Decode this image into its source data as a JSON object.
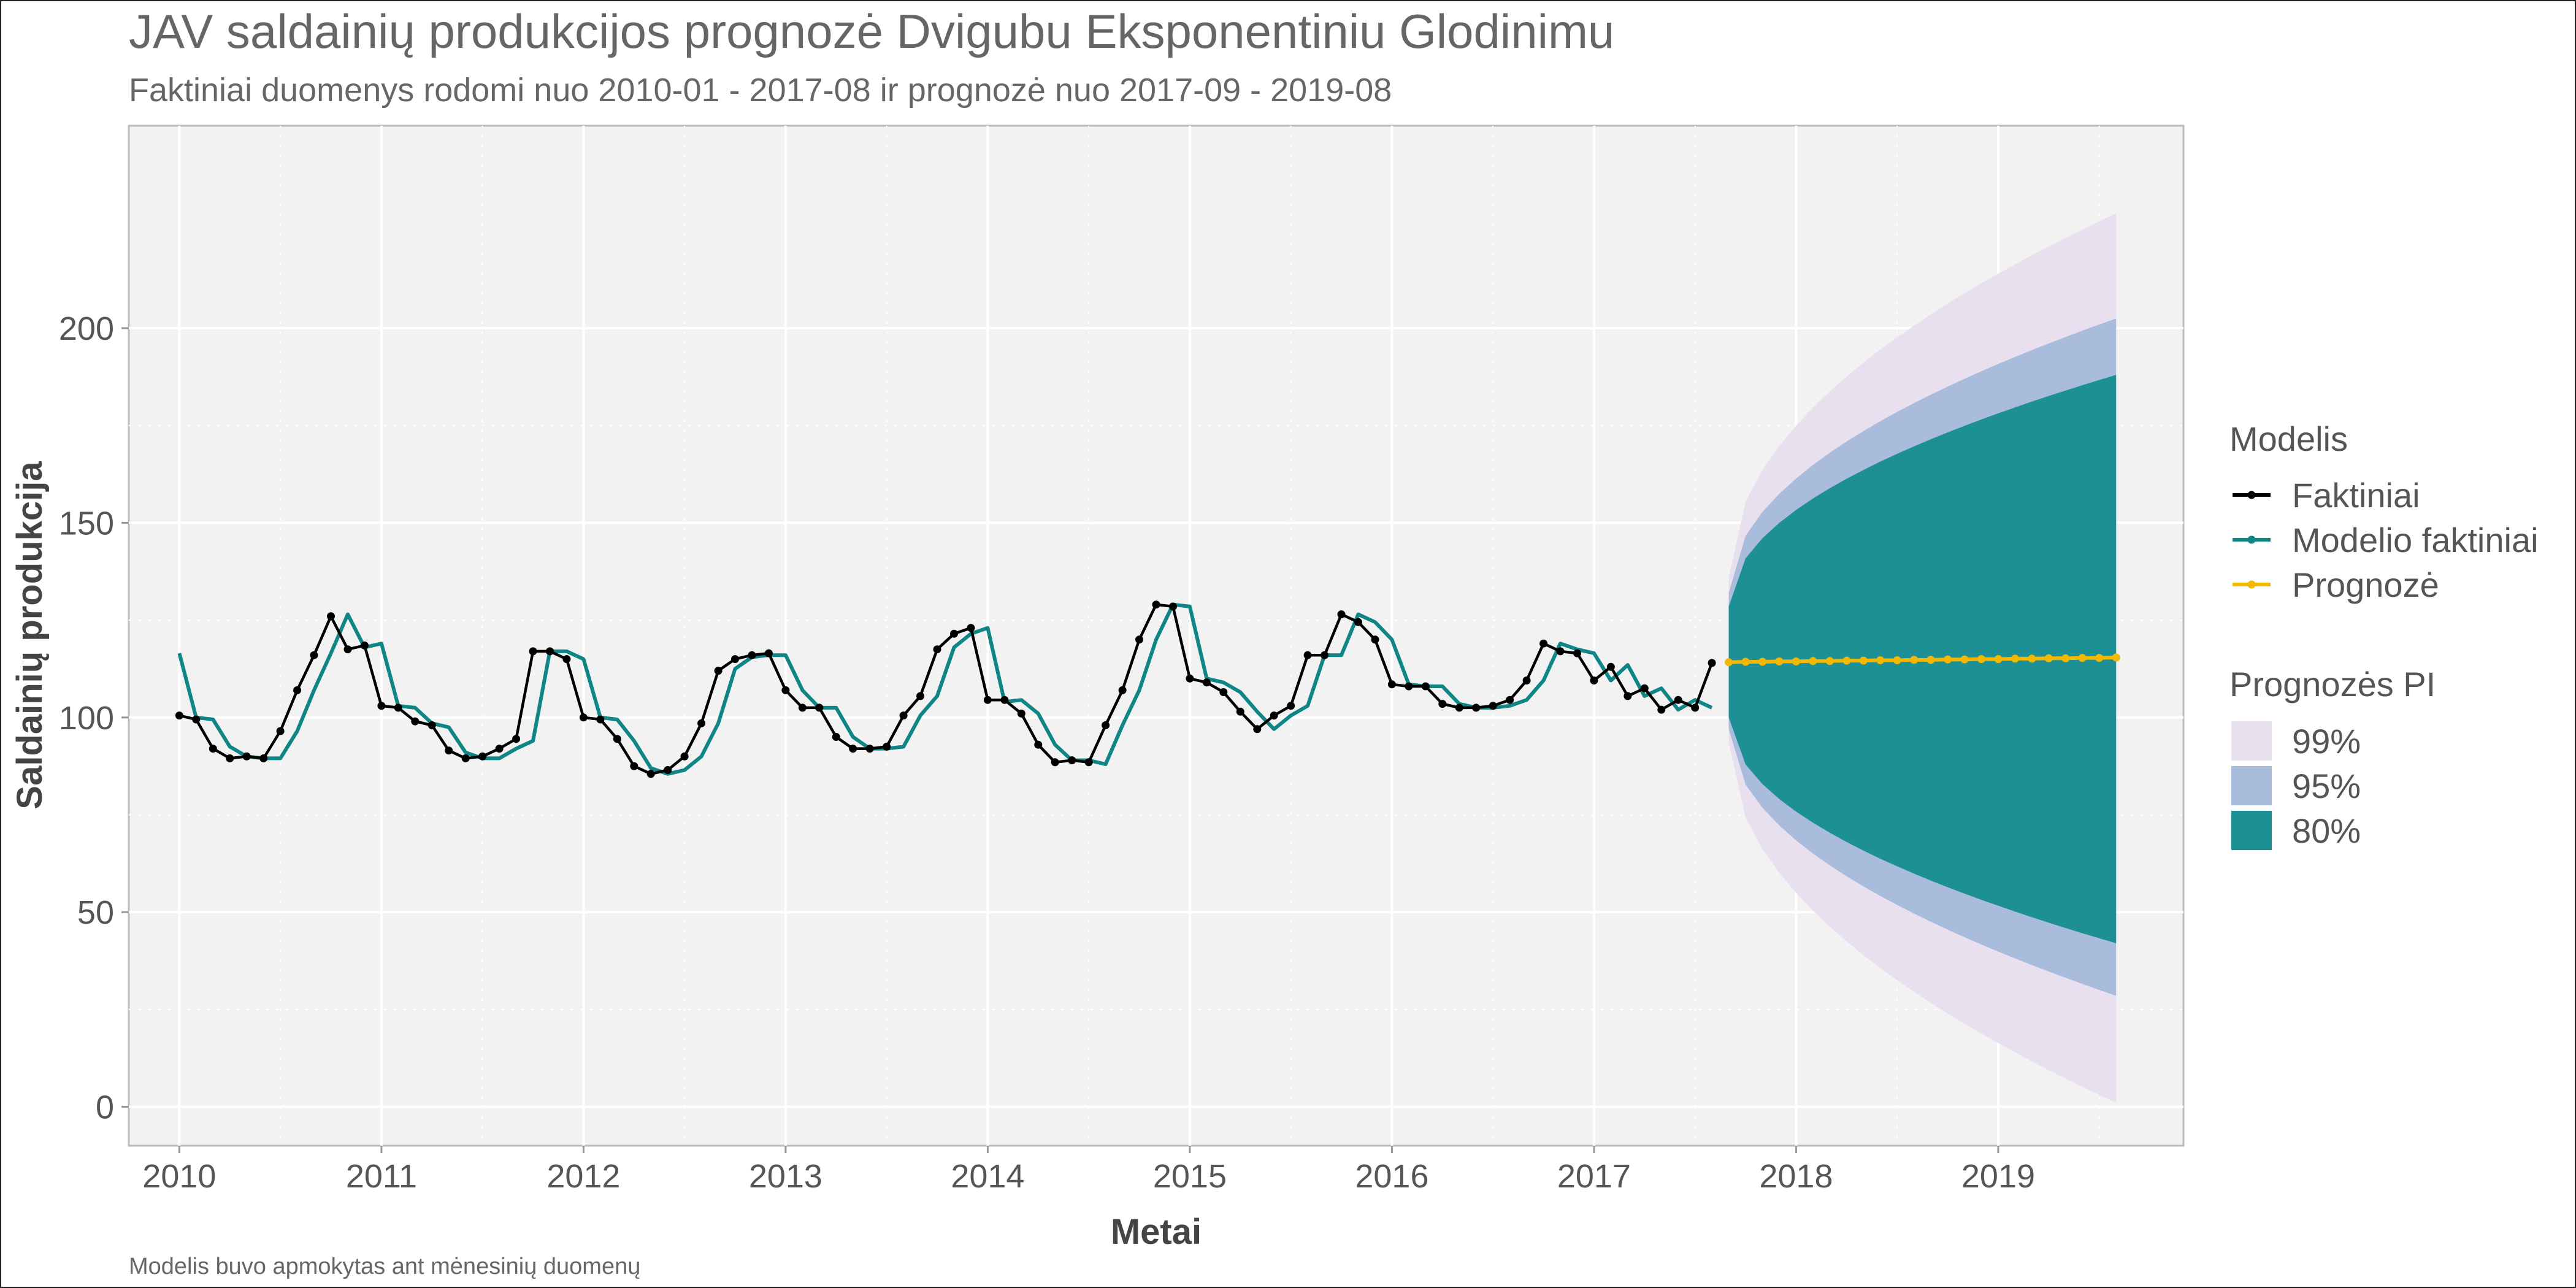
{
  "title": "JAV saldainių produkcijos prognozė Dvigubu Eksponentiniu Glodinimu",
  "subtitle": "Faktiniai duomenys rodomi nuo 2010-01 - 2017-08 ir prognozė nuo 2017-09 - 2019-08",
  "caption": "Modelis buvo apmokytas ant mėnesinių duomenų",
  "chart_data": {
    "type": "line",
    "xlabel": "Metai",
    "ylabel": "Saldainių produkcija",
    "xlim": [
      "2009-10",
      "2019-12"
    ],
    "ylim": [
      -10,
      252
    ],
    "x_ticks": [
      "2010",
      "2011",
      "2012",
      "2013",
      "2014",
      "2015",
      "2016",
      "2017",
      "2018",
      "2019"
    ],
    "y_ticks": [
      0,
      50,
      100,
      150,
      200
    ],
    "grid": true,
    "legend_position": "right",
    "colors": {
      "panel": "#f2f2f2",
      "grid_major": "#ffffff",
      "actual": "#000000",
      "fitted": "#0f8585",
      "forecast": "#f5b800",
      "pi99": "#e9e0ef",
      "pi95": "#a9bcdc",
      "pi80": "#1d9096"
    },
    "actual": {
      "start": "2010-01",
      "values": [
        100.5,
        99.5,
        92,
        89.5,
        90,
        89.5,
        96.5,
        107,
        116,
        126,
        117.5,
        118.5,
        103,
        102.5,
        99,
        98,
        91.5,
        89.5,
        90,
        92,
        94.5,
        117,
        117,
        115,
        100,
        99.5,
        94.5,
        87.5,
        85.5,
        86.5,
        90,
        98.5,
        112,
        115,
        116,
        116.5,
        107,
        102.5,
        102.5,
        95,
        92,
        92,
        92.5,
        100.5,
        105.5,
        117.5,
        121.5,
        123,
        104.5,
        104.5,
        101,
        93,
        88.5,
        89,
        88.5,
        98,
        107,
        120,
        129,
        128.5,
        110,
        109,
        106.5,
        101.5,
        97,
        100.5,
        103,
        116,
        116,
        126.5,
        124.5,
        120,
        108.5,
        108,
        108,
        103.5,
        102.5,
        102.5,
        103,
        104.5,
        109.5,
        119,
        117,
        116.5,
        109.5,
        113,
        105.5,
        107.5,
        102,
        104.5,
        102.5,
        114
      ]
    },
    "fitted": {
      "start": "2010-01",
      "values": [
        116.5,
        100,
        99.5,
        92.5,
        90,
        89.5,
        89.5,
        96.5,
        107,
        116.5,
        126.5,
        118,
        119,
        103,
        102.5,
        98.5,
        97.5,
        91,
        89.5,
        89.5,
        92,
        94,
        117,
        117,
        115,
        100,
        99.5,
        94,
        87,
        85.5,
        86.5,
        90,
        98.5,
        112.5,
        115.5,
        116,
        116,
        107,
        102.5,
        102.5,
        95,
        92,
        92,
        92.5,
        100.5,
        105.5,
        118,
        121.5,
        123,
        104,
        104.5,
        101,
        93,
        89,
        89,
        88,
        98,
        107,
        120,
        129,
        128.5,
        110,
        109,
        106.5,
        101.5,
        97,
        100.5,
        103,
        116,
        116,
        126.5,
        124.5,
        120,
        108.5,
        108,
        108,
        103.5,
        102.5,
        102.5,
        103,
        104.5,
        109.5,
        119,
        117.5,
        116.5,
        109.5,
        113.5,
        105.5,
        107.5,
        102,
        104.5,
        102.5
      ]
    },
    "forecast": {
      "start": "2017-09",
      "values": [
        114.2,
        114.3,
        114.3,
        114.4,
        114.4,
        114.5,
        114.5,
        114.6,
        114.6,
        114.7,
        114.7,
        114.8,
        114.8,
        114.9,
        114.9,
        115.0,
        115.0,
        115.1,
        115.1,
        115.2,
        115.2,
        115.3,
        115.3,
        115.4
      ],
      "pi80": {
        "lower_first": 100,
        "upper_first": 128.5,
        "lower_last": 42,
        "upper_last": 188
      },
      "pi95": {
        "lower_first": 97,
        "upper_first": 132,
        "lower_last": 28.5,
        "upper_last": 202.5
      },
      "pi99": {
        "lower_first": 93.5,
        "upper_first": 136,
        "lower_last": 1,
        "upper_last": 229.5
      }
    },
    "legend": {
      "model_title": "Modelis",
      "model_items": [
        {
          "label": "Faktiniai",
          "color": "#000000"
        },
        {
          "label": "Modelio faktiniai",
          "color": "#0f8585"
        },
        {
          "label": "Prognozė",
          "color": "#f5b800"
        }
      ],
      "pi_title": "Prognozės PI",
      "pi_items": [
        {
          "label": "99%",
          "color": "#e9e0ef"
        },
        {
          "label": "95%",
          "color": "#a9bcdc"
        },
        {
          "label": "80%",
          "color": "#1d9096"
        }
      ]
    }
  }
}
